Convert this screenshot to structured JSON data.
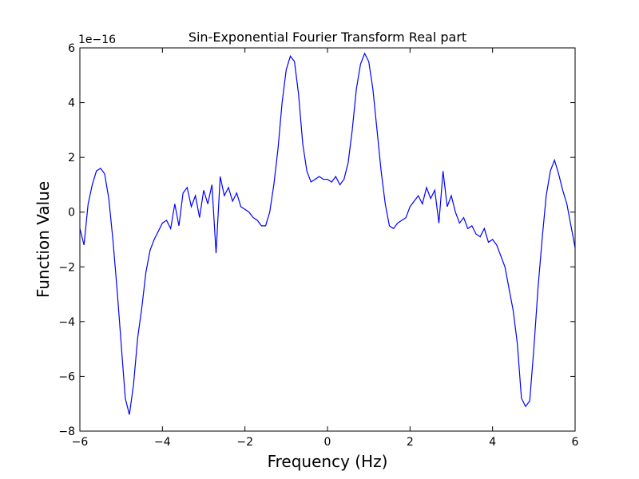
{
  "chart_data": {
    "type": "line",
    "title": "Sin-Exponential Fourier Transform Real part",
    "xlabel": "Frequency (Hz)",
    "ylabel": "Function Value",
    "y_offset_label": "1e−16",
    "xlim": [
      -6,
      6
    ],
    "ylim": [
      -8,
      6
    ],
    "xticks": [
      {
        "value": -6,
        "label": "−6"
      },
      {
        "value": -4,
        "label": "−4"
      },
      {
        "value": -2,
        "label": "−2"
      },
      0,
      2,
      4,
      6
    ],
    "yticks": [
      {
        "value": -8,
        "label": "−8"
      },
      {
        "value": -6,
        "label": "−6"
      },
      {
        "value": -4,
        "label": "−4"
      },
      {
        "value": -2,
        "label": "−2"
      },
      0,
      2,
      4,
      6
    ],
    "grid": false,
    "x": [
      -6,
      -5.9,
      -5.8,
      -5.7,
      -5.6,
      -5.5,
      -5.4,
      -5.3,
      -5.2,
      -5.1,
      -5,
      -4.9,
      -4.8,
      -4.7,
      -4.6,
      -4.5,
      -4.4,
      -4.3,
      -4.2,
      -4.1,
      -4,
      -3.9,
      -3.8,
      -3.7,
      -3.6,
      -3.5,
      -3.4,
      -3.3,
      -3.2,
      -3.1,
      -3,
      -2.9,
      -2.8,
      -2.7,
      -2.6,
      -2.5,
      -2.4,
      -2.3,
      -2.2,
      -2.1,
      -2,
      -1.9,
      -1.8,
      -1.7,
      -1.6,
      -1.5,
      -1.4,
      -1.3,
      -1.2,
      -1.1,
      -1,
      -0.9,
      -0.8,
      -0.7,
      -0.6,
      -0.5,
      -0.4,
      -0.3,
      -0.2,
      -0.1,
      0,
      0.1,
      0.2,
      0.3,
      0.4,
      0.5,
      0.6,
      0.7,
      0.8,
      0.9,
      1,
      1.1,
      1.2,
      1.3,
      1.4,
      1.5,
      1.6,
      1.7,
      1.8,
      1.9,
      2,
      2.1,
      2.2,
      2.3,
      2.4,
      2.5,
      2.6,
      2.7,
      2.8,
      2.9,
      3,
      3.1,
      3.2,
      3.3,
      3.4,
      3.5,
      3.6,
      3.7,
      3.8,
      3.9,
      4,
      4.1,
      4.2,
      4.3,
      4.4,
      4.5,
      4.6,
      4.7,
      4.8,
      4.9,
      5,
      5.1,
      5.2,
      5.3,
      5.4,
      5.5,
      5.6,
      5.7,
      5.8,
      5.9,
      6
    ],
    "series": [
      {
        "color": "#0000ff",
        "values": [
          -0.6,
          -1.2,
          0.3,
          1.0,
          1.5,
          1.6,
          1.4,
          0.5,
          -1.0,
          -2.8,
          -4.8,
          -6.8,
          -7.4,
          -6.3,
          -4.6,
          -3.5,
          -2.2,
          -1.4,
          -1.0,
          -0.7,
          -0.4,
          -0.3,
          -0.6,
          0.3,
          -0.5,
          0.7,
          0.9,
          0.2,
          0.6,
          -0.2,
          0.8,
          0.3,
          1.0,
          -1.5,
          1.3,
          0.6,
          0.9,
          0.4,
          0.7,
          0.2,
          0.1,
          0.0,
          -0.2,
          -0.3,
          -0.5,
          -0.5,
          0.0,
          1.0,
          2.3,
          4.0,
          5.2,
          5.7,
          5.5,
          4.3,
          2.5,
          1.5,
          1.1,
          1.2,
          1.3,
          1.2,
          1.2,
          1.1,
          1.3,
          1.0,
          1.2,
          1.8,
          3.0,
          4.5,
          5.4,
          5.8,
          5.5,
          4.5,
          3.0,
          1.5,
          0.3,
          -0.5,
          -0.6,
          -0.4,
          -0.3,
          -0.2,
          0.2,
          0.4,
          0.6,
          0.3,
          0.9,
          0.5,
          0.8,
          -0.4,
          1.5,
          0.2,
          0.6,
          0.0,
          -0.4,
          -0.2,
          -0.6,
          -0.5,
          -0.8,
          -0.9,
          -0.6,
          -1.1,
          -1.0,
          -1.2,
          -1.6,
          -2.0,
          -2.8,
          -3.6,
          -4.8,
          -6.8,
          -7.1,
          -6.9,
          -5.0,
          -2.8,
          -1.0,
          0.6,
          1.5,
          1.9,
          1.4,
          0.8,
          0.3,
          -0.5,
          -1.3
        ]
      }
    ]
  }
}
